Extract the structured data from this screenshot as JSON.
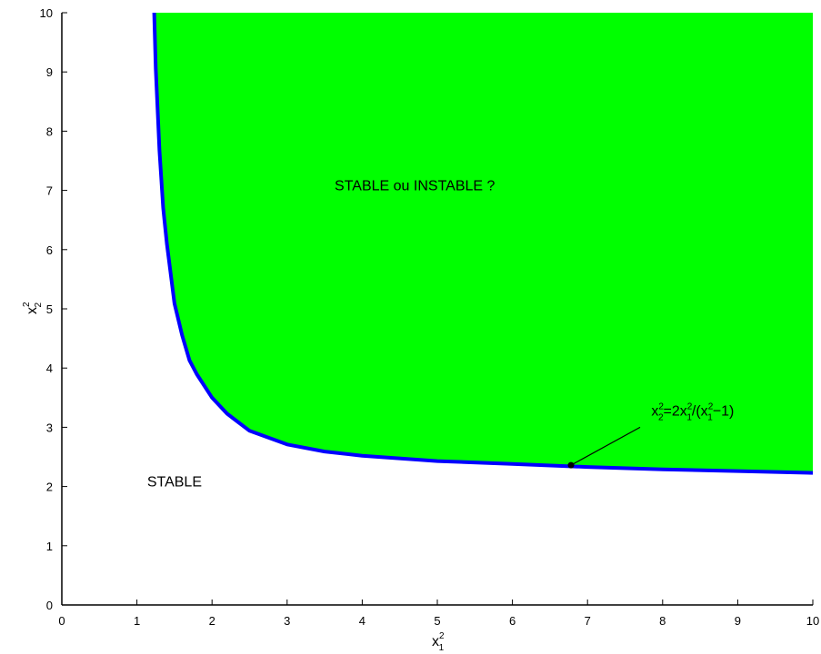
{
  "chart_data": {
    "type": "area",
    "title": "",
    "xlabel": {
      "base": "x",
      "sup": "2",
      "sub": "1"
    },
    "ylabel": {
      "base": "x",
      "sup": "2",
      "sub": "2"
    },
    "xlim": [
      0,
      10
    ],
    "ylim": [
      0,
      10
    ],
    "xticks": [
      "0",
      "1",
      "2",
      "3",
      "4",
      "5",
      "6",
      "7",
      "8",
      "9",
      "10"
    ],
    "yticks": [
      "0",
      "1",
      "2",
      "3",
      "4",
      "5",
      "6",
      "7",
      "8",
      "9",
      "10"
    ],
    "grid": false,
    "curve": {
      "x": [
        1.23,
        1.25,
        1.3,
        1.35,
        1.4,
        1.5,
        1.6,
        1.7,
        1.8,
        2.0,
        2.2,
        2.5,
        3.0,
        3.5,
        4.0,
        5.0,
        6.0,
        7.0,
        8.0,
        9.0,
        10.0
      ],
      "y": [
        10.0,
        9.06,
        7.67,
        6.7,
        6.09,
        5.09,
        4.56,
        4.13,
        3.89,
        3.5,
        3.23,
        2.94,
        2.71,
        2.59,
        2.52,
        2.43,
        2.38,
        2.33,
        2.29,
        2.26,
        2.23
      ],
      "color": "#0000ff"
    },
    "region": {
      "fill": "#00ff00",
      "label": "STABLE ou INSTABLE ?",
      "label_at": [
        4.7,
        7.0
      ]
    },
    "region_outside": {
      "label": "STABLE",
      "label_at": [
        1.5,
        2.0
      ]
    },
    "annotation": {
      "pieces": [
        {
          "t": "x",
          "k": "base"
        },
        {
          "t": "2",
          "k": "sup"
        },
        {
          "t": "2",
          "k": "sub"
        },
        {
          "t": "=2x",
          "k": "base"
        },
        {
          "t": "2",
          "k": "sup"
        },
        {
          "t": "1",
          "k": "sub"
        },
        {
          "t": "/(x",
          "k": "base"
        },
        {
          "t": "2",
          "k": "sup"
        },
        {
          "t": "1",
          "k": "sub"
        },
        {
          "t": "−1)",
          "k": "base"
        }
      ],
      "text_at": [
        7.85,
        3.2
      ],
      "arrow_from": [
        7.7,
        3.0
      ],
      "arrow_to": [
        6.78,
        2.36
      ]
    }
  }
}
